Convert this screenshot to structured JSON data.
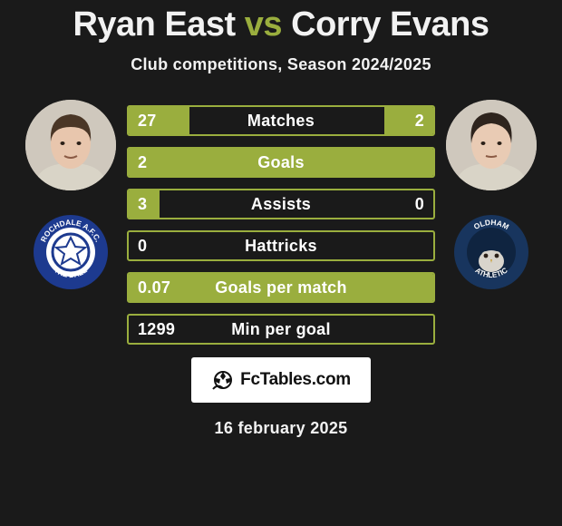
{
  "header": {
    "player1_name": "Ryan East",
    "vs": "vs",
    "player2_name": "Corry Evans",
    "subtitle": "Club competitions, Season 2024/2025"
  },
  "accent_color": "#9aae3e",
  "background_color": "#1a1a1a",
  "stats": [
    {
      "label": "Matches",
      "left_value": "27",
      "right_value": "2",
      "left_pct": 20,
      "right_pct": 16
    },
    {
      "label": "Goals",
      "left_value": "2",
      "right_value": "",
      "left_pct": 100,
      "right_pct": 0
    },
    {
      "label": "Assists",
      "left_value": "3",
      "right_value": "0",
      "left_pct": 10,
      "right_pct": 0
    },
    {
      "label": "Hattricks",
      "left_value": "0",
      "right_value": "",
      "left_pct": 0,
      "right_pct": 0
    },
    {
      "label": "Goals per match",
      "left_value": "0.07",
      "right_value": "",
      "left_pct": 100,
      "right_pct": 0
    },
    {
      "label": "Min per goal",
      "left_value": "1299",
      "right_value": "",
      "left_pct": 0,
      "right_pct": 0
    }
  ],
  "watermark": {
    "brand_text": "FcTables.com"
  },
  "date_text": "16 february 2025",
  "player1": {
    "avatar_bg": "#cfc8bd",
    "skin": "#e8c6ad",
    "hair": "#4a3626",
    "shirt": "#d9d4c7"
  },
  "player2": {
    "avatar_bg": "#cfc8bd",
    "skin": "#e9cbb4",
    "hair": "#2e241d",
    "shirt": "#d9d4c7"
  },
  "club1": {
    "outer": "#1d3a8f",
    "inner": "#ffffff",
    "text": "#ffffff",
    "top_text": "ROCHDALE A.F.C.",
    "bottom_text": "THE DALE"
  },
  "club2": {
    "outer": "#18355e",
    "inner": "#0f2440",
    "text": "#ffffff",
    "top_text": "OLDHAM",
    "bottom_text": "ATHLETIC"
  }
}
